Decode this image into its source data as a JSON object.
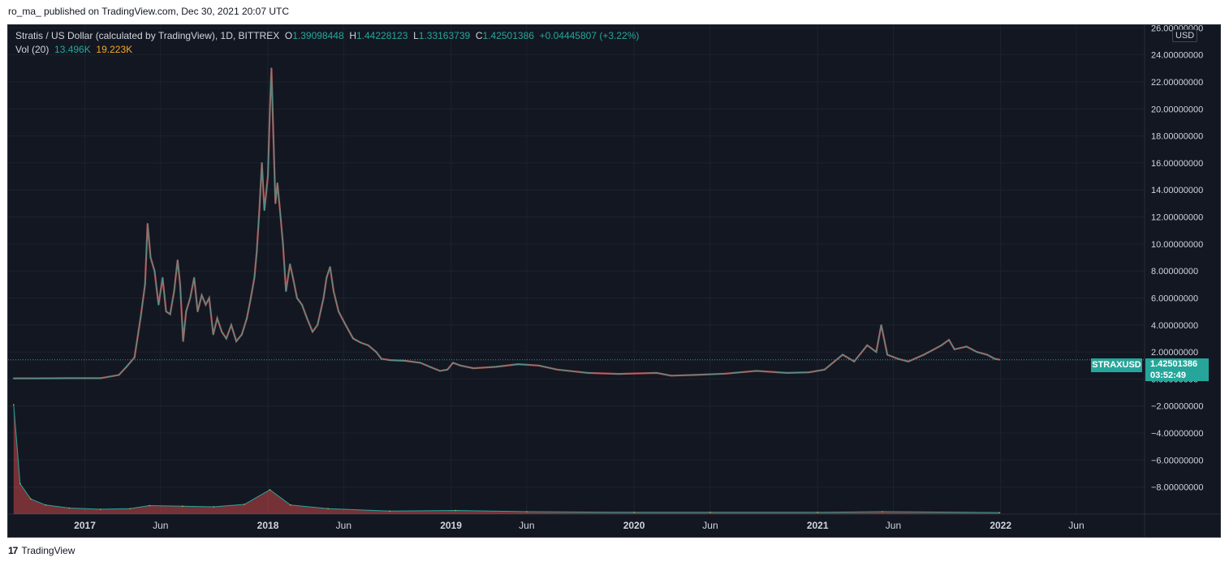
{
  "header": {
    "caption": "ro_ma_ published on TradingView.com, Dec 30, 2021 20:07 UTC"
  },
  "legend": {
    "title": "Stratis / US Dollar (calculated by TradingView), 1D, BITTREX",
    "o_label": "O",
    "o_value": "1.39098448",
    "h_label": "H",
    "h_value": "1.44228123",
    "l_label": "L",
    "l_value": "1.33163739",
    "c_label": "C",
    "c_value": "1.42501386",
    "change": "+0.04445807 (+3.22%)",
    "vol_label": "Vol (20)",
    "vol_value": "13.496K",
    "vol_ma": "19.223K"
  },
  "price_scale": {
    "unit": "USD"
  },
  "last_price": {
    "symbol": "STRAXUSD",
    "price": "1.42501386",
    "countdown": "03:52:49"
  },
  "footer": {
    "brand": "TradingView",
    "logo_text": "17"
  },
  "colors": {
    "background": "#131722",
    "up": "#26a69a",
    "down": "#ef5350",
    "grid": "#1e222d",
    "text": "#d1d4dc",
    "vol_ma": "#f5a623"
  },
  "chart_data": {
    "type": "line",
    "title": "Stratis / US Dollar (calculated by TradingView), 1D, BITTREX",
    "xlabel": "",
    "ylabel": "",
    "x_tick_labels": [
      "2017",
      "Jun",
      "2018",
      "Jun",
      "2019",
      "Jun",
      "2020",
      "Jun",
      "2021",
      "Jun",
      "2022",
      "Jun"
    ],
    "x_tick_dates": [
      "2017-01-01",
      "2017-06-01",
      "2018-01-01",
      "2018-06-01",
      "2019-01-01",
      "2019-06-01",
      "2020-01-01",
      "2020-06-01",
      "2021-01-01",
      "2021-06-01",
      "2022-01-01",
      "2022-06-01"
    ],
    "y_ticks": [
      "26.00000000",
      "24.00000000",
      "22.00000000",
      "20.00000000",
      "18.00000000",
      "16.00000000",
      "14.00000000",
      "12.00000000",
      "10.00000000",
      "8.00000000",
      "6.00000000",
      "4.00000000",
      "2.00000000",
      "0.00000000",
      "−2.00000000",
      "−4.00000000",
      "−6.00000000",
      "−8.00000000"
    ],
    "y_tick_values": [
      26,
      24,
      22,
      20,
      18,
      16,
      14,
      12,
      10,
      8,
      6,
      4,
      2,
      0,
      -2,
      -4,
      -6,
      -8
    ],
    "ylim": [
      -10,
      26.2
    ],
    "xlim": [
      "2016-08-01",
      "2022-10-15"
    ],
    "grid": true,
    "last_close": 1.42501386,
    "series": [
      {
        "name": "STRAXUSD",
        "points": [
          [
            "2016-08-12",
            0.05
          ],
          [
            "2016-10-01",
            0.05
          ],
          [
            "2016-12-01",
            0.06
          ],
          [
            "2017-02-01",
            0.06
          ],
          [
            "2017-03-10",
            0.3
          ],
          [
            "2017-03-25",
            0.9
          ],
          [
            "2017-04-10",
            1.6
          ],
          [
            "2017-04-22",
            4.5
          ],
          [
            "2017-05-01",
            7.0
          ],
          [
            "2017-05-06",
            11.5
          ],
          [
            "2017-05-12",
            9.0
          ],
          [
            "2017-05-20",
            8.0
          ],
          [
            "2017-05-28",
            5.5
          ],
          [
            "2017-06-05",
            7.5
          ],
          [
            "2017-06-12",
            5.0
          ],
          [
            "2017-06-20",
            4.8
          ],
          [
            "2017-06-28",
            6.5
          ],
          [
            "2017-07-05",
            8.8
          ],
          [
            "2017-07-10",
            7.0
          ],
          [
            "2017-07-16",
            2.8
          ],
          [
            "2017-07-22",
            5.0
          ],
          [
            "2017-07-30",
            6.0
          ],
          [
            "2017-08-07",
            7.5
          ],
          [
            "2017-08-14",
            5.0
          ],
          [
            "2017-08-22",
            6.2
          ],
          [
            "2017-08-30",
            5.5
          ],
          [
            "2017-09-06",
            6.0
          ],
          [
            "2017-09-14",
            3.3
          ],
          [
            "2017-09-22",
            4.5
          ],
          [
            "2017-10-01",
            3.5
          ],
          [
            "2017-10-10",
            3.0
          ],
          [
            "2017-10-20",
            4.0
          ],
          [
            "2017-10-30",
            2.8
          ],
          [
            "2017-11-10",
            3.3
          ],
          [
            "2017-11-20",
            4.5
          ],
          [
            "2017-11-28",
            6.0
          ],
          [
            "2017-12-05",
            7.5
          ],
          [
            "2017-12-10",
            9.5
          ],
          [
            "2017-12-15",
            12.5
          ],
          [
            "2017-12-20",
            16.0
          ],
          [
            "2017-12-25",
            12.5
          ],
          [
            "2018-01-01",
            15.0
          ],
          [
            "2018-01-05",
            20.0
          ],
          [
            "2018-01-08",
            23.0
          ],
          [
            "2018-01-12",
            18.0
          ],
          [
            "2018-01-16",
            13.0
          ],
          [
            "2018-01-20",
            14.5
          ],
          [
            "2018-01-25",
            12.5
          ],
          [
            "2018-01-31",
            10.0
          ],
          [
            "2018-02-06",
            6.5
          ],
          [
            "2018-02-14",
            8.5
          ],
          [
            "2018-02-20",
            7.5
          ],
          [
            "2018-02-28",
            6.0
          ],
          [
            "2018-03-10",
            5.5
          ],
          [
            "2018-03-20",
            4.5
          ],
          [
            "2018-03-31",
            3.5
          ],
          [
            "2018-04-10",
            4.0
          ],
          [
            "2018-04-22",
            6.0
          ],
          [
            "2018-04-28",
            7.5
          ],
          [
            "2018-05-05",
            8.3
          ],
          [
            "2018-05-12",
            6.5
          ],
          [
            "2018-05-22",
            5.0
          ],
          [
            "2018-06-05",
            4.0
          ],
          [
            "2018-06-20",
            3.0
          ],
          [
            "2018-07-05",
            2.7
          ],
          [
            "2018-07-20",
            2.5
          ],
          [
            "2018-08-05",
            2.0
          ],
          [
            "2018-08-15",
            1.5
          ],
          [
            "2018-09-01",
            1.4
          ],
          [
            "2018-10-01",
            1.35
          ],
          [
            "2018-11-01",
            1.2
          ],
          [
            "2018-11-20",
            0.9
          ],
          [
            "2018-12-10",
            0.6
          ],
          [
            "2018-12-25",
            0.7
          ],
          [
            "2019-01-05",
            1.2
          ],
          [
            "2019-01-20",
            1.0
          ],
          [
            "2019-02-15",
            0.8
          ],
          [
            "2019-04-01",
            0.9
          ],
          [
            "2019-05-15",
            1.1
          ],
          [
            "2019-06-25",
            1.0
          ],
          [
            "2019-08-01",
            0.7
          ],
          [
            "2019-10-01",
            0.45
          ],
          [
            "2019-12-01",
            0.38
          ],
          [
            "2020-02-15",
            0.45
          ],
          [
            "2020-03-15",
            0.25
          ],
          [
            "2020-05-01",
            0.3
          ],
          [
            "2020-07-01",
            0.4
          ],
          [
            "2020-09-01",
            0.6
          ],
          [
            "2020-11-01",
            0.45
          ],
          [
            "2020-12-15",
            0.5
          ],
          [
            "2021-01-15",
            0.7
          ],
          [
            "2021-02-20",
            1.8
          ],
          [
            "2021-03-15",
            1.3
          ],
          [
            "2021-04-10",
            2.5
          ],
          [
            "2021-04-28",
            2.0
          ],
          [
            "2021-05-08",
            4.0
          ],
          [
            "2021-05-20",
            1.8
          ],
          [
            "2021-06-10",
            1.5
          ],
          [
            "2021-07-01",
            1.3
          ],
          [
            "2021-08-01",
            1.8
          ],
          [
            "2021-09-05",
            2.5
          ],
          [
            "2021-09-20",
            2.9
          ],
          [
            "2021-10-01",
            2.2
          ],
          [
            "2021-10-25",
            2.4
          ],
          [
            "2021-11-15",
            2.0
          ],
          [
            "2021-12-05",
            1.8
          ],
          [
            "2021-12-20",
            1.5
          ],
          [
            "2021-12-30",
            1.43
          ]
        ]
      },
      {
        "name": "Vol (20)",
        "points": [
          [
            "2016-08-12",
            18
          ],
          [
            "2016-08-25",
            5
          ],
          [
            "2016-09-15",
            2.5
          ],
          [
            "2016-10-15",
            1.5
          ],
          [
            "2016-12-01",
            1.0
          ],
          [
            "2017-02-01",
            0.8
          ],
          [
            "2017-04-01",
            0.9
          ],
          [
            "2017-05-10",
            1.4
          ],
          [
            "2017-07-15",
            1.3
          ],
          [
            "2017-09-15",
            1.2
          ],
          [
            "2017-11-15",
            1.6
          ],
          [
            "2018-01-05",
            4.0
          ],
          [
            "2018-02-15",
            1.5
          ],
          [
            "2018-05-01",
            0.9
          ],
          [
            "2018-09-01",
            0.5
          ],
          [
            "2019-01-10",
            0.6
          ],
          [
            "2019-06-01",
            0.4
          ],
          [
            "2020-01-01",
            0.3
          ],
          [
            "2020-06-01",
            0.3
          ],
          [
            "2021-01-01",
            0.3
          ],
          [
            "2021-05-10",
            0.4
          ],
          [
            "2021-12-30",
            0.25
          ]
        ]
      }
    ]
  }
}
